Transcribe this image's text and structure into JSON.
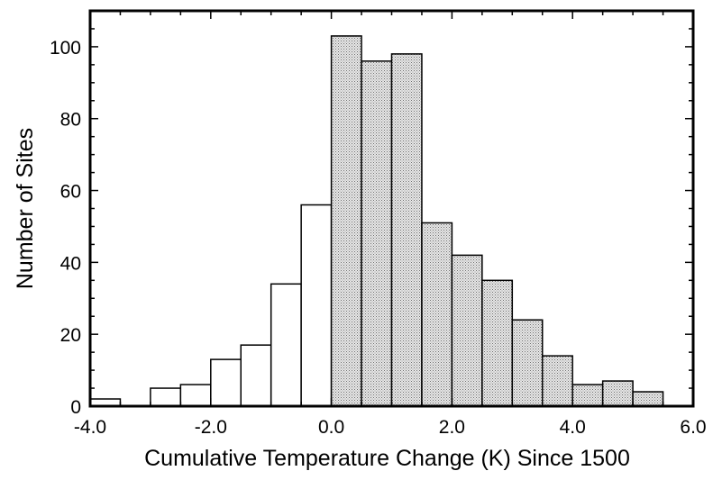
{
  "chart_data": {
    "type": "bar",
    "title": "",
    "xlabel": "Cumulative Temperature Change (K) Since 1500",
    "ylabel": "Number of Sites",
    "xlim": [
      -4.0,
      6.0
    ],
    "ylim": [
      0,
      110
    ],
    "bin_width": 0.5,
    "bins": [
      {
        "x0": -4.0,
        "x1": -3.5,
        "count": 2,
        "shaded": false
      },
      {
        "x0": -3.5,
        "x1": -3.0,
        "count": 0,
        "shaded": false
      },
      {
        "x0": -3.0,
        "x1": -2.5,
        "count": 5,
        "shaded": false
      },
      {
        "x0": -2.5,
        "x1": -2.0,
        "count": 6,
        "shaded": false
      },
      {
        "x0": -2.0,
        "x1": -1.5,
        "count": 13,
        "shaded": false
      },
      {
        "x0": -1.5,
        "x1": -1.0,
        "count": 17,
        "shaded": false
      },
      {
        "x0": -1.0,
        "x1": -0.5,
        "count": 34,
        "shaded": false
      },
      {
        "x0": -0.5,
        "x1": 0.0,
        "count": 56,
        "shaded": false
      },
      {
        "x0": 0.0,
        "x1": 0.5,
        "count": 103,
        "shaded": true
      },
      {
        "x0": 0.5,
        "x1": 1.0,
        "count": 96,
        "shaded": true
      },
      {
        "x0": 1.0,
        "x1": 1.5,
        "count": 98,
        "shaded": true
      },
      {
        "x0": 1.5,
        "x1": 2.0,
        "count": 51,
        "shaded": true
      },
      {
        "x0": 2.0,
        "x1": 2.5,
        "count": 42,
        "shaded": true
      },
      {
        "x0": 2.5,
        "x1": 3.0,
        "count": 35,
        "shaded": true
      },
      {
        "x0": 3.0,
        "x1": 3.5,
        "count": 24,
        "shaded": true
      },
      {
        "x0": 3.5,
        "x1": 4.0,
        "count": 14,
        "shaded": true
      },
      {
        "x0": 4.0,
        "x1": 4.5,
        "count": 6,
        "shaded": true
      },
      {
        "x0": 4.5,
        "x1": 5.0,
        "count": 7,
        "shaded": true
      },
      {
        "x0": 5.0,
        "x1": 5.5,
        "count": 4,
        "shaded": true
      }
    ],
    "x_ticks": [
      {
        "value": -4.0,
        "label": "-4.0"
      },
      {
        "value": -2.0,
        "label": "-2.0"
      },
      {
        "value": 0.0,
        "label": "0.0"
      },
      {
        "value": 2.0,
        "label": "2.0"
      },
      {
        "value": 4.0,
        "label": "4.0"
      },
      {
        "value": 6.0,
        "label": "6.0"
      }
    ],
    "x_minor_step": 0.5,
    "y_ticks": [
      {
        "value": 0,
        "label": "0"
      },
      {
        "value": 20,
        "label": "20"
      },
      {
        "value": 40,
        "label": "40"
      },
      {
        "value": 60,
        "label": "60"
      },
      {
        "value": 80,
        "label": "80"
      },
      {
        "value": 100,
        "label": "100"
      }
    ],
    "y_minor_step": 5,
    "grid": false,
    "colors": {
      "negative_fill": "#ffffff",
      "positive_fill": "#d9d9d9",
      "stroke": "#000000"
    }
  }
}
